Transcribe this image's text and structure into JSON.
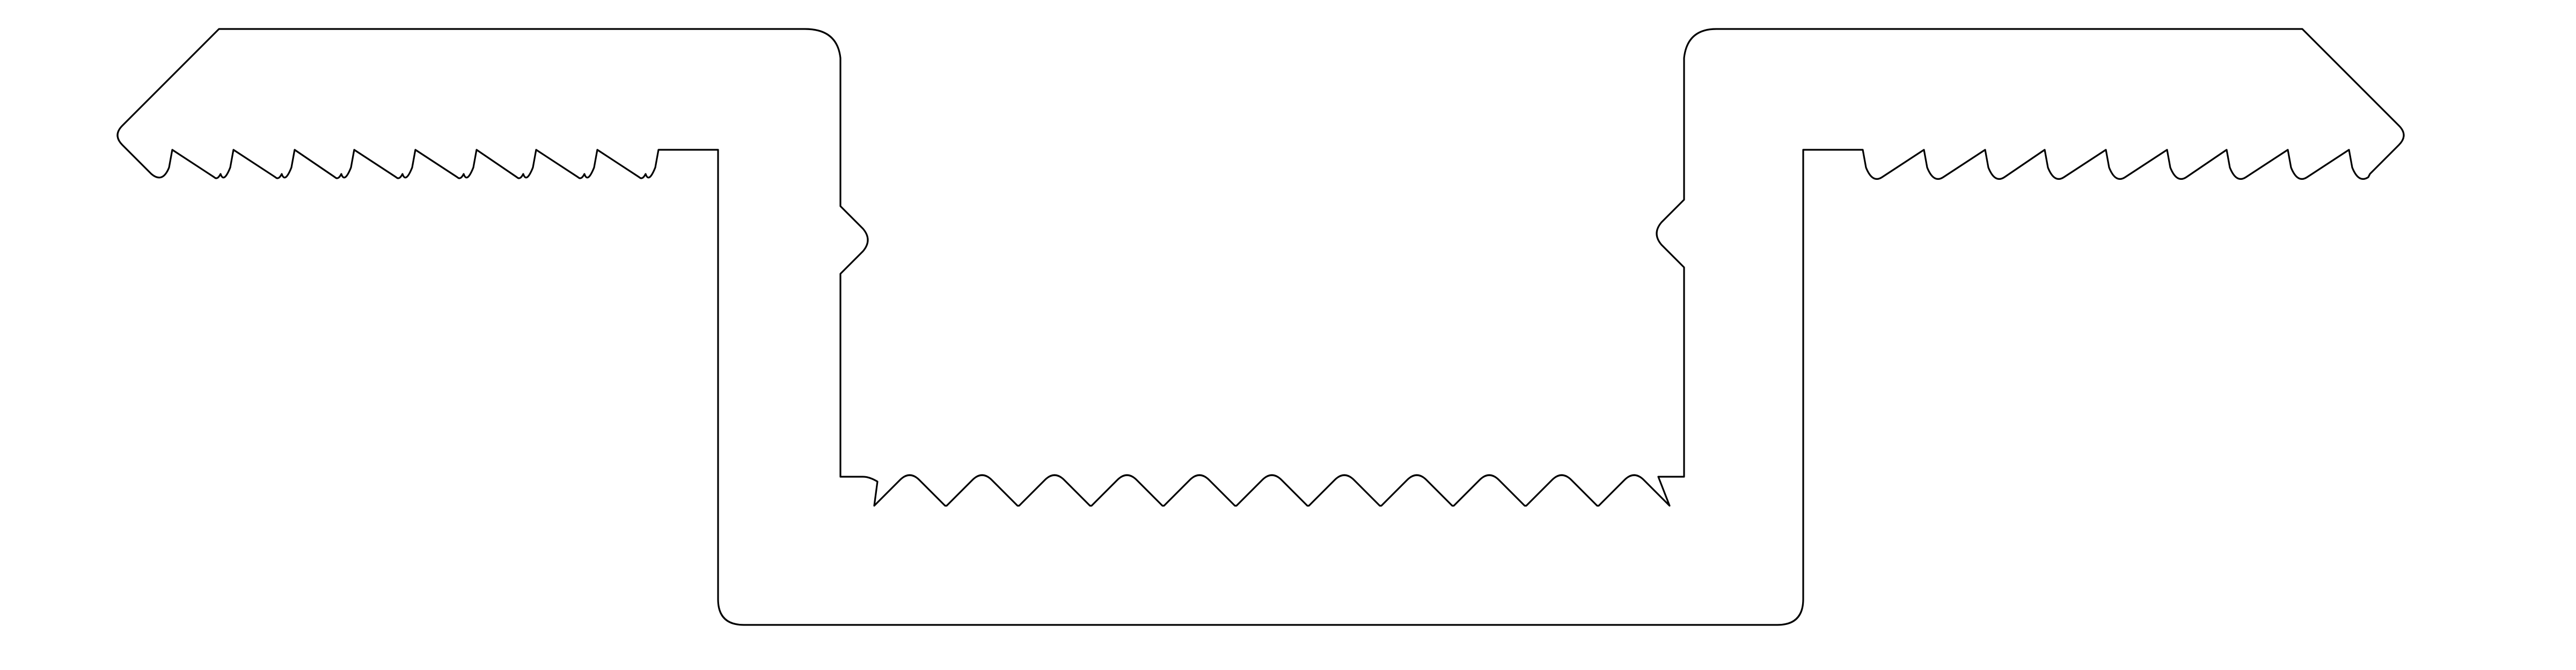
{
  "drawing": {
    "subject": "profile-cross-section",
    "background_color": "#ffffff",
    "line_color": "#000000",
    "text": []
  }
}
